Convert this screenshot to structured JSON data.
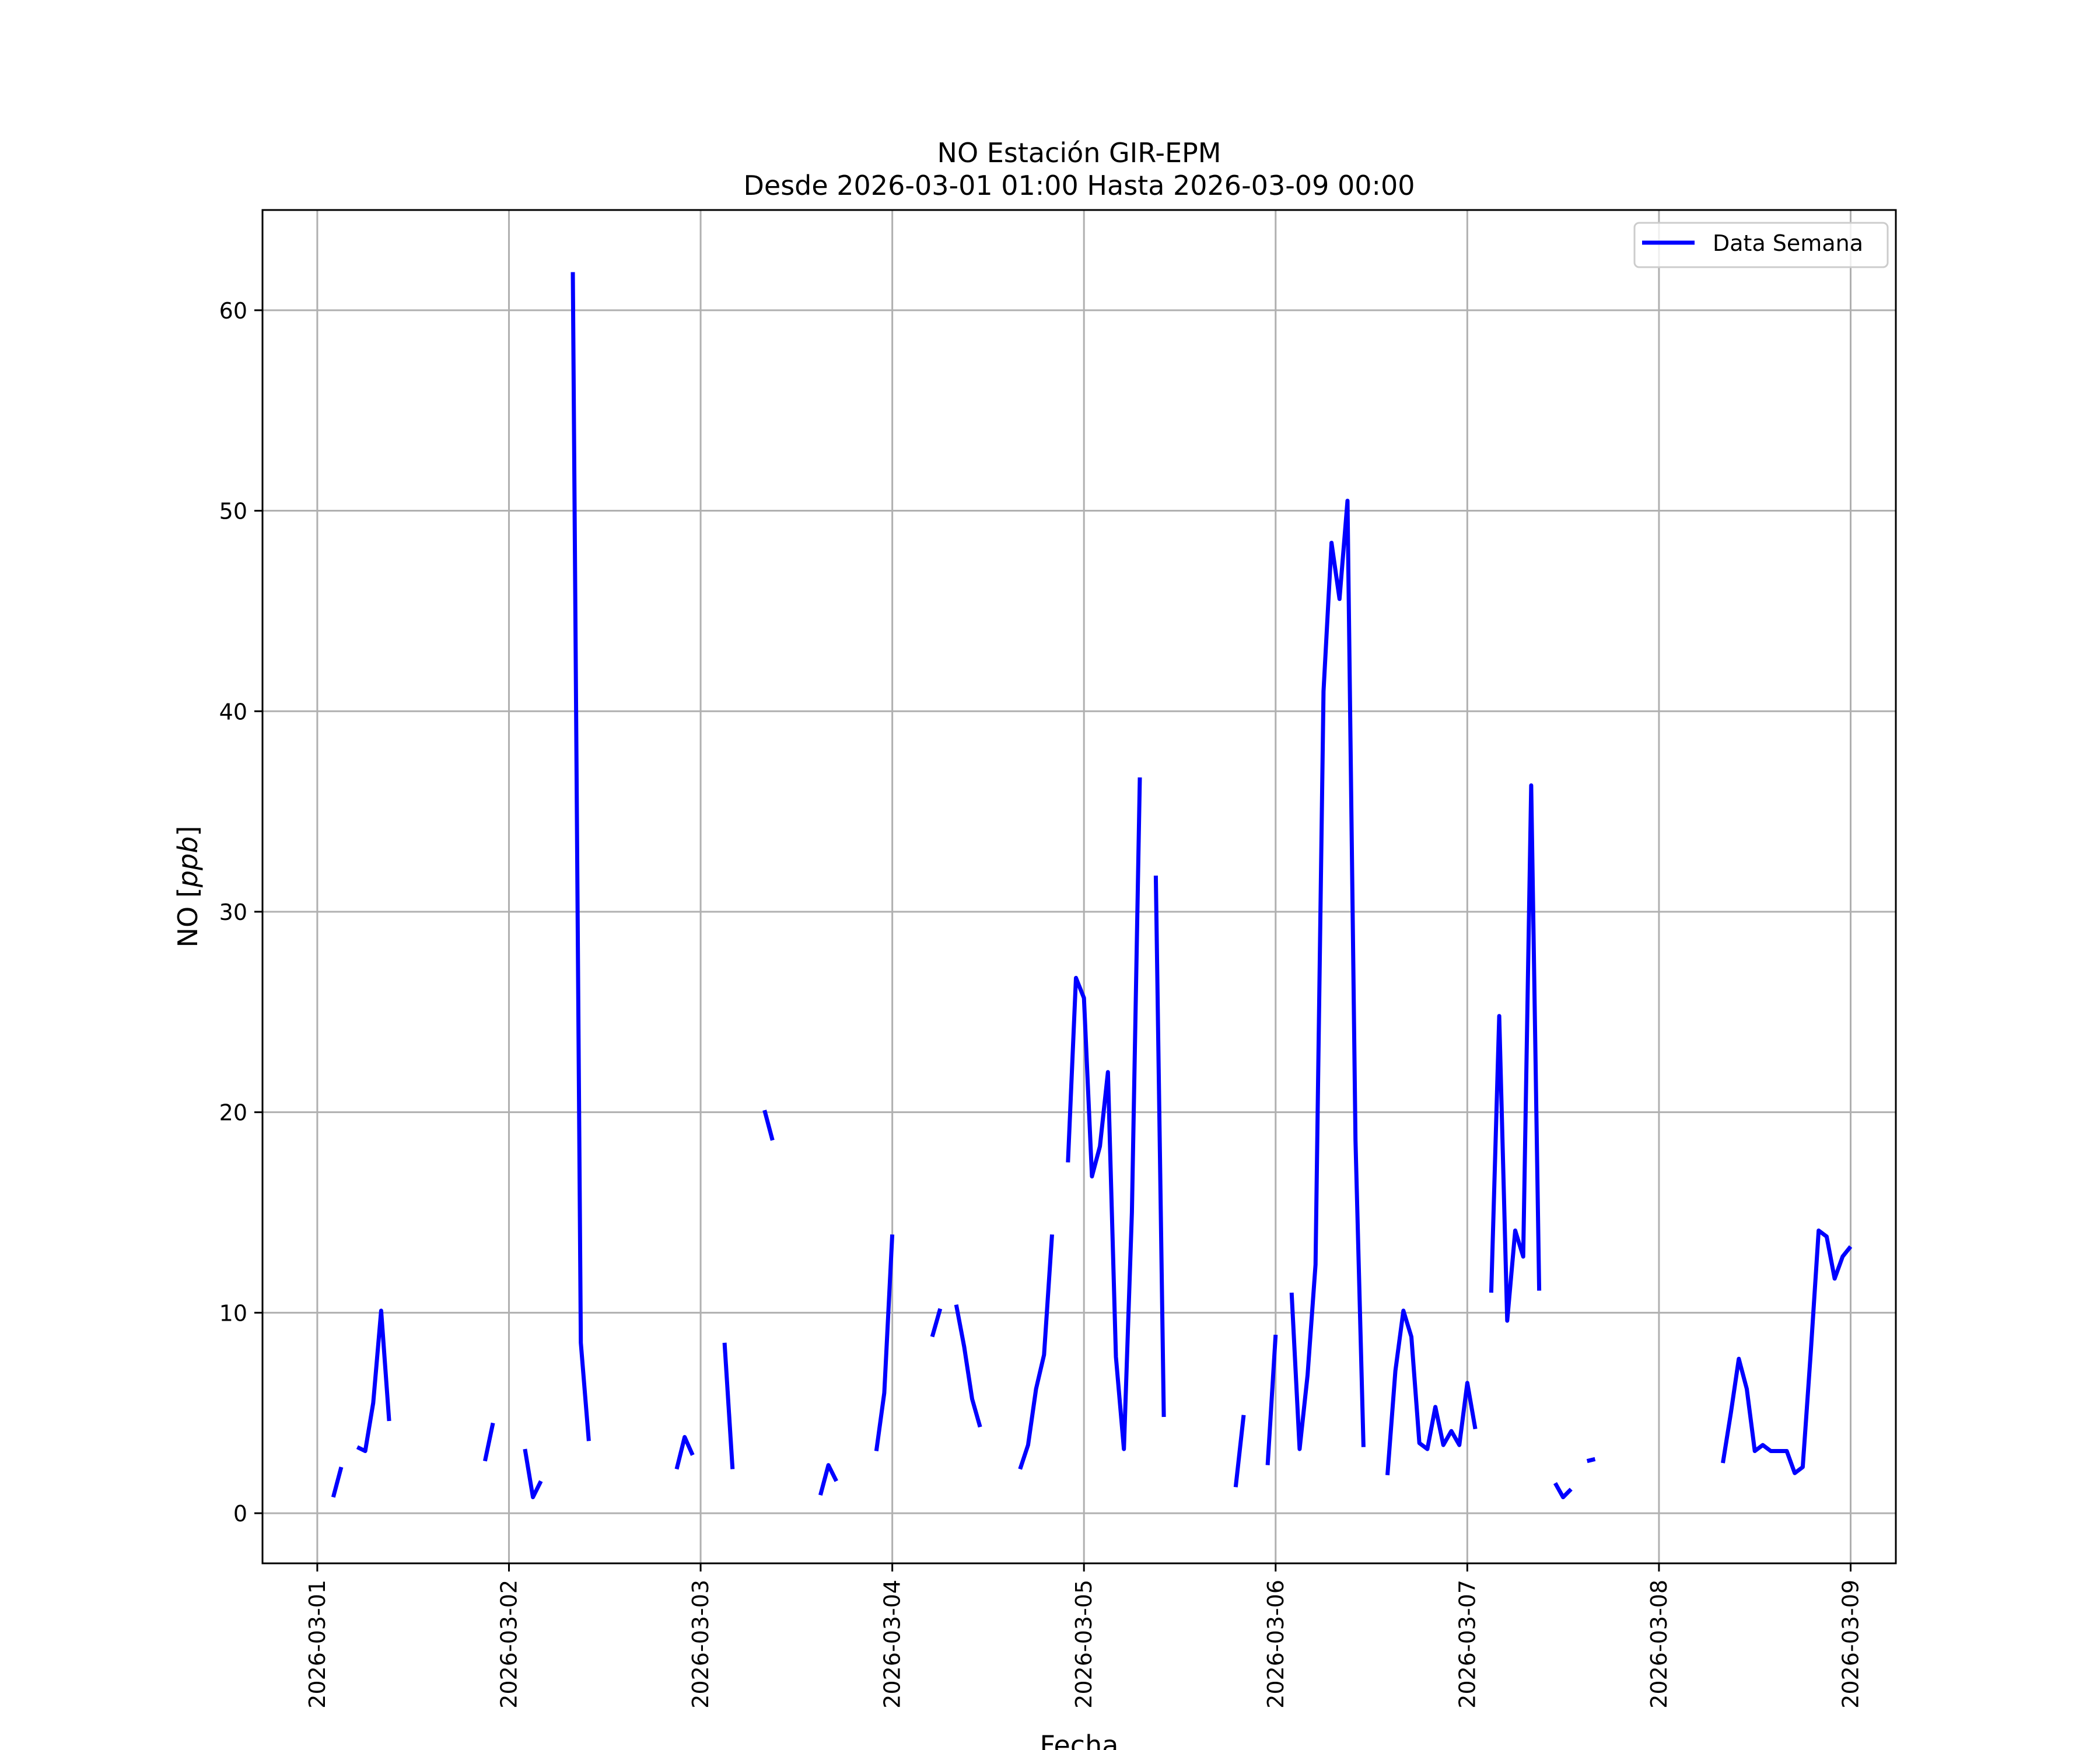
{
  "chart_data": {
    "type": "line",
    "title": "NO Estación GIR-EPM",
    "subtitle": "Desde 2026-03-01 01:00 Hasta 2026-03-09 00:00",
    "xlabel": "Fecha",
    "ylabel": "NO [ppb]",
    "ylabel_prefix": "NO [",
    "ylabel_unit": "ppb",
    "ylabel_suffix": "]",
    "x_start": "2026-03-01T00:00",
    "xlim_hours": [
      -6.86,
      197.66
    ],
    "ylim": [
      -2.5,
      65
    ],
    "y_ticks": [
      0,
      10,
      20,
      30,
      40,
      50,
      60
    ],
    "x_tick_labels": [
      "2026-03-01",
      "2026-03-02",
      "2026-03-03",
      "2026-03-04",
      "2026-03-05",
      "2026-03-06",
      "2026-03-07",
      "2026-03-08",
      "2026-03-09"
    ],
    "grid": true,
    "legend_position": "top-right",
    "series": [
      {
        "name": "Data Semana",
        "color": "#0000ff",
        "segments": [
          [
            [
              2,
              0.8
            ],
            [
              3,
              2.3
            ]
          ],
          [
            [
              5,
              3.3
            ],
            [
              6,
              3.1
            ],
            [
              7,
              5.5
            ],
            [
              8,
              10.1
            ],
            [
              9,
              4.6
            ]
          ],
          [
            [
              21,
              2.6
            ],
            [
              22,
              4.5
            ]
          ],
          [
            [
              26,
              3.2
            ],
            [
              27,
              0.8
            ],
            [
              28,
              1.6
            ]
          ],
          [
            [
              32,
              61.9
            ],
            [
              33,
              8.5
            ],
            [
              34,
              3.6
            ]
          ],
          [
            [
              45,
              2.2
            ],
            [
              46,
              3.8
            ],
            [
              47,
              2.9
            ]
          ],
          [
            [
              51,
              8.5
            ],
            [
              52,
              2.2
            ]
          ],
          [
            [
              56,
              20.1
            ],
            [
              57,
              18.6
            ]
          ],
          [
            [
              63,
              0.9
            ],
            [
              64,
              2.4
            ],
            [
              65,
              1.6
            ]
          ],
          [
            [
              70,
              3.1
            ],
            [
              71,
              6.0
            ],
            [
              72,
              13.9
            ]
          ],
          [
            [
              77,
              8.8
            ],
            [
              78,
              10.2
            ]
          ],
          [
            [
              80,
              10.4
            ],
            [
              81,
              8.3
            ],
            [
              82,
              5.7
            ],
            [
              83,
              4.3
            ]
          ],
          [
            [
              88,
              2.2
            ],
            [
              89,
              3.4
            ],
            [
              90,
              6.2
            ],
            [
              91,
              7.9
            ],
            [
              92,
              13.9
            ]
          ],
          [
            [
              94,
              17.5
            ],
            [
              95,
              26.7
            ],
            [
              96,
              25.7
            ],
            [
              97,
              16.8
            ],
            [
              98,
              18.3
            ],
            [
              99,
              22.0
            ],
            [
              100,
              7.8
            ],
            [
              101,
              3.2
            ],
            [
              102,
              15.0
            ],
            [
              103,
              36.7
            ]
          ],
          [
            [
              105,
              31.8
            ],
            [
              106,
              4.8
            ]
          ],
          [
            [
              115,
              1.3
            ],
            [
              116,
              4.9
            ]
          ],
          [
            [
              119,
              2.4
            ],
            [
              120,
              8.9
            ]
          ],
          [
            [
              122,
              11.0
            ],
            [
              123,
              3.2
            ],
            [
              124,
              6.9
            ],
            [
              125,
              12.4
            ],
            [
              126,
              41.0
            ],
            [
              127,
              48.4
            ],
            [
              128,
              45.6
            ],
            [
              129,
              50.5
            ],
            [
              130,
              18.6
            ],
            [
              131,
              3.3
            ]
          ],
          [
            [
              134,
              1.9
            ],
            [
              135,
              7.1
            ],
            [
              136,
              10.1
            ],
            [
              137,
              8.8
            ],
            [
              138,
              3.5
            ],
            [
              139,
              3.2
            ],
            [
              140,
              5.3
            ],
            [
              141,
              3.4
            ],
            [
              142,
              4.1
            ],
            [
              143,
              3.4
            ],
            [
              144,
              6.5
            ],
            [
              145,
              4.2
            ]
          ],
          [
            [
              147,
              11.0
            ],
            [
              148,
              24.8
            ],
            [
              149,
              9.6
            ],
            [
              150,
              14.1
            ],
            [
              151,
              12.8
            ],
            [
              152,
              36.3
            ],
            [
              153,
              11.1
            ]
          ],
          [
            [
              155,
              1.5
            ],
            [
              156,
              0.8
            ],
            [
              157,
              1.2
            ]
          ],
          [
            [
              159,
              2.6
            ],
            [
              160,
              2.7
            ]
          ],
          [
            [
              176,
              2.5
            ],
            [
              177,
              5.0
            ],
            [
              178,
              7.7
            ],
            [
              179,
              6.2
            ],
            [
              180,
              3.1
            ],
            [
              181,
              3.4
            ],
            [
              182,
              3.1
            ],
            [
              183,
              3.1
            ],
            [
              184,
              3.1
            ],
            [
              185,
              2.0
            ],
            [
              186,
              2.3
            ],
            [
              187,
              8.0
            ],
            [
              188,
              14.1
            ],
            [
              189,
              13.8
            ],
            [
              190,
              11.7
            ],
            [
              191,
              12.8
            ],
            [
              192,
              13.3
            ]
          ]
        ]
      }
    ]
  }
}
